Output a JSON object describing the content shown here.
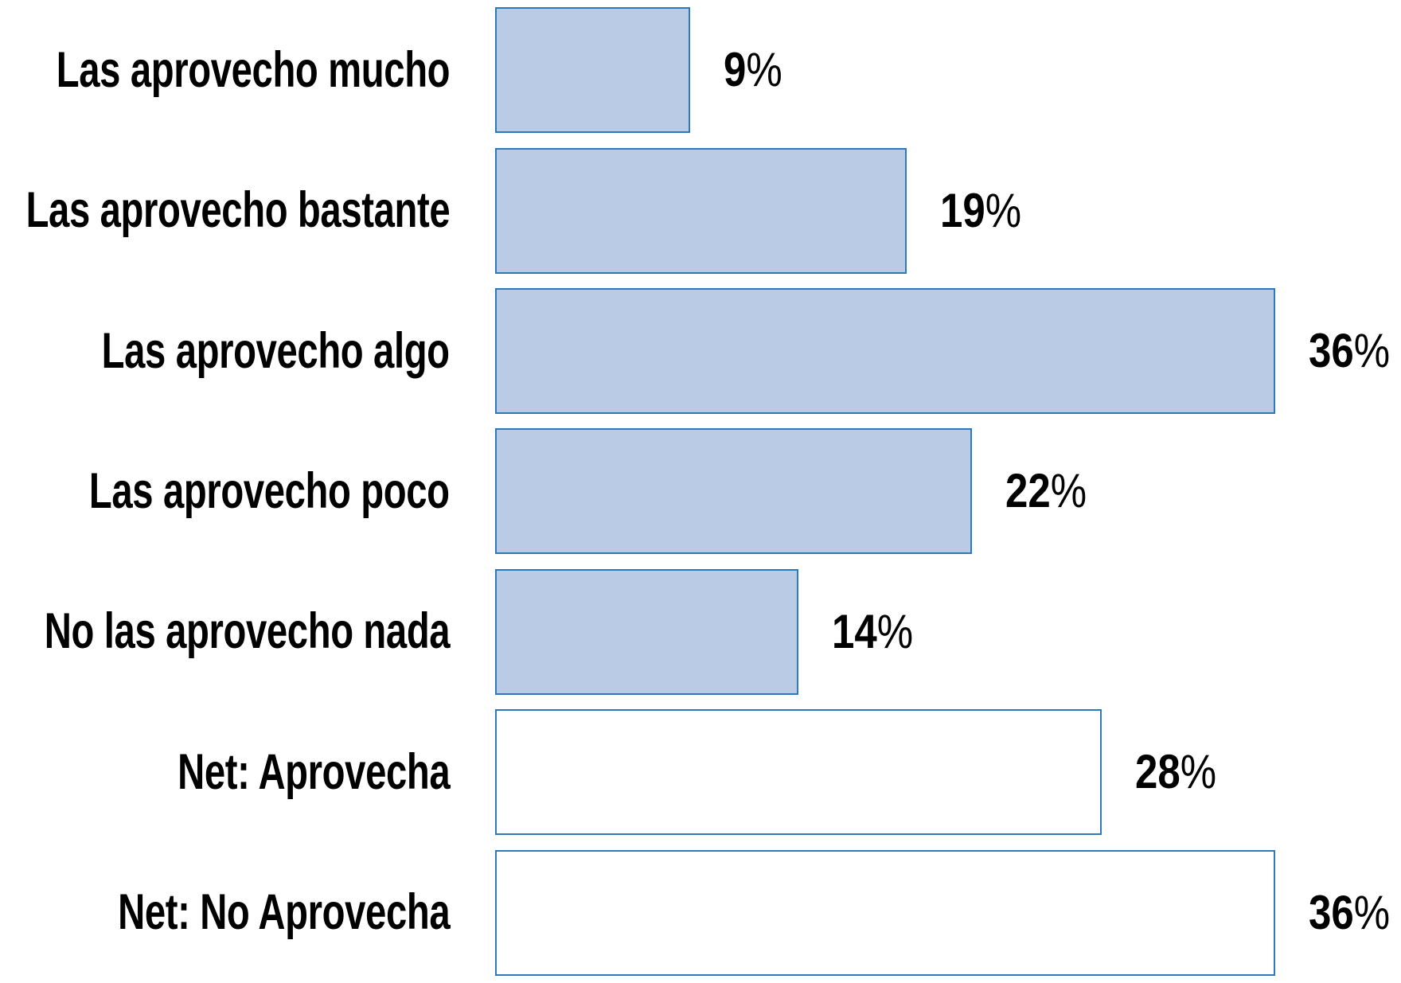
{
  "chart_data": {
    "type": "bar",
    "orientation": "horizontal",
    "title": "",
    "xlabel": "",
    "ylabel": "",
    "grid": false,
    "axes_visible": false,
    "legend": null,
    "xlim": [
      0,
      41.8
    ],
    "categories": [
      "Las aprovecho mucho",
      "Las aprovecho bastante",
      "Las aprovecho algo",
      "Las aprovecho poco",
      "No las aprovecho nada",
      "Net: Aprovecha",
      "Net: No Aprovecha"
    ],
    "values": [
      9,
      19,
      36,
      22,
      14,
      28,
      36
    ],
    "data_labels": [
      "9%",
      "19%",
      "36%",
      "22%",
      "14%",
      "28%",
      "36%"
    ],
    "bar_styles": [
      "filled",
      "filled",
      "filled",
      "filled",
      "filled",
      "outline",
      "outline"
    ]
  },
  "style": {
    "bar_fill": "#B9CBE5",
    "bar_border": "#2E79BC",
    "bar_outline_fill": "#FFFFFF",
    "text_color": "#000000",
    "background": "#FFFFFF"
  }
}
